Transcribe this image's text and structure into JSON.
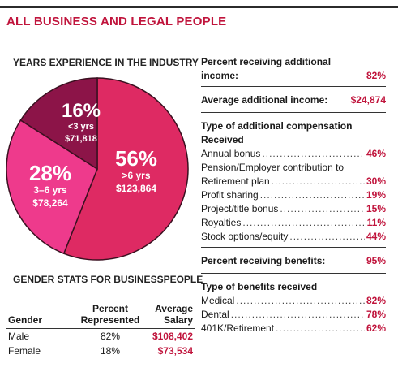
{
  "main_title": "ALL BUSINESS AND LEGAL PEOPLE",
  "colors": {
    "accent": "#c0143c",
    "slice_large": "#de2a63",
    "slice_medium": "#ee3a8c",
    "slice_small": "#8c1448"
  },
  "chart_data": {
    "type": "pie",
    "title": "YEARS EXPERIENCE IN THE INDUSTRY",
    "slices": [
      {
        "label": ">6 yrs",
        "value": 56,
        "pct_label": "56%",
        "salary": "$123,864",
        "color": "#de2a63"
      },
      {
        "label": "3–6 yrs",
        "value": 28,
        "pct_label": "28%",
        "salary": "$78,264",
        "color": "#ee3a8c"
      },
      {
        "label": "<3 yrs",
        "value": 16,
        "pct_label": "16%",
        "salary": "$71,818",
        "color": "#8c1448"
      }
    ]
  },
  "gender": {
    "title": "GENDER STATS FOR BUSINESSPEOPLE",
    "headers": {
      "gender": "Gender",
      "percent_1": "Percent",
      "percent_2": "Represented",
      "salary_1": "Average",
      "salary_2": "Salary"
    },
    "rows": [
      {
        "gender": "Male",
        "percent": "82%",
        "salary": "$108,402"
      },
      {
        "gender": "Female",
        "percent": "18%",
        "salary": "$73,534"
      }
    ]
  },
  "additional": {
    "receiving_label_1": "Percent receiving additional",
    "receiving_label_2": "income:",
    "receiving_value": "82%",
    "average_label": "Average additional income:",
    "average_value": "$24,874"
  },
  "compensation": {
    "title_1": "Type of additional compensation",
    "title_2": "Received",
    "items": [
      {
        "label": "Annual bonus",
        "value": "46%"
      },
      {
        "label": "Retirement plan",
        "label_above": "Pension/Employer contribution to",
        "value": "30%"
      },
      {
        "label": "Profit sharing",
        "value": "19%"
      },
      {
        "label": "Project/title bonus",
        "value": "15%"
      },
      {
        "label": "Royalties",
        "value": "11%"
      },
      {
        "label": "Stock options/equity",
        "value": "44%"
      }
    ]
  },
  "benefits": {
    "receiving_label": "Percent receiving benefits:",
    "receiving_value": "95%",
    "title": "Type of benefits received",
    "items": [
      {
        "label": "Medical",
        "value": "82%"
      },
      {
        "label": "Dental",
        "value": "78%"
      },
      {
        "label": "401K/Retirement",
        "value": "62%"
      }
    ]
  }
}
